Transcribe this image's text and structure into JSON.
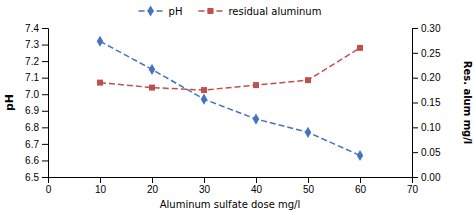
{
  "chart_data": {
    "type": "line",
    "xlabel": "Aluminum sulfate dose mg/l",
    "ylabel": "pH",
    "y2label": "Res. alum mg/l",
    "x": [
      10,
      20,
      30,
      40,
      50,
      60
    ],
    "xlim": [
      0,
      70
    ],
    "xticks": [
      0,
      10,
      20,
      30,
      40,
      50,
      60,
      70
    ],
    "ylim": [
      6.5,
      7.4
    ],
    "yticks": [
      6.5,
      6.6,
      6.7,
      6.8,
      6.9,
      {
        "value": 7.0,
        "label": "7.0"
      },
      7.1,
      7.2,
      7.3,
      7.4
    ],
    "y2lim": [
      0.0,
      0.3
    ],
    "y2ticks": [
      {
        "value": 0.0,
        "label": "0.00"
      },
      0.05,
      {
        "value": 0.1,
        "label": "0.10"
      },
      0.15,
      {
        "value": 0.2,
        "label": "0.20"
      },
      0.25,
      {
        "value": 0.3,
        "label": "0.30"
      }
    ],
    "legend": "top",
    "series": [
      {
        "name": "pH",
        "color": "#4472C4",
        "marker": "diamond",
        "line_style": "dashed",
        "values": [
          7.32,
          7.15,
          6.97,
          6.85,
          6.77,
          6.63
        ]
      },
      {
        "name": "residual aluminum",
        "color": "#C0504D",
        "marker": "square",
        "line_style": "dashed",
        "axis": "y2",
        "values": [
          0.19,
          0.18,
          0.175,
          0.185,
          0.195,
          0.26
        ]
      }
    ]
  }
}
